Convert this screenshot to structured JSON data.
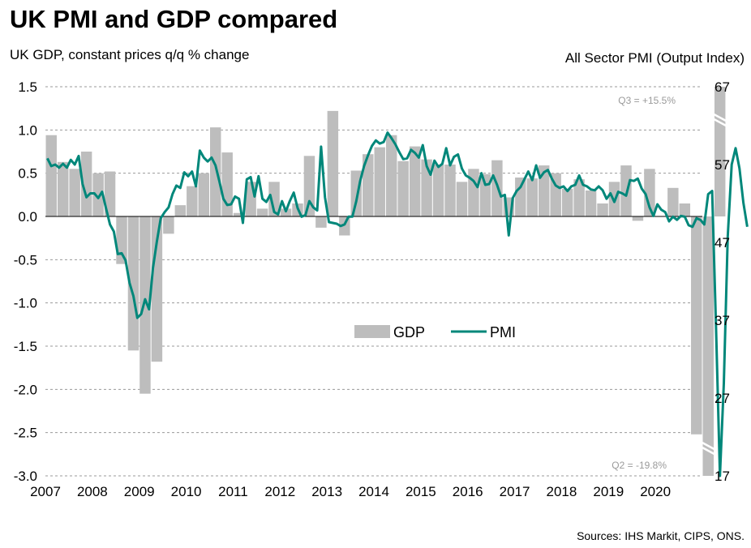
{
  "title": "UK PMI and GDP compared",
  "source": "Sources: IHS Markit, CIPS, ONS.",
  "chart_data": {
    "type": "bar+line",
    "ylabel_left": "UK GDP, constant prices q/q % change",
    "ylabel_right": "All Sector PMI (Output Index)",
    "left_axis": {
      "min": -3.0,
      "max": 1.5,
      "ticks": [
        "1.5",
        "1.0",
        "0.5",
        "0.0",
        "-0.5",
        "-1.0",
        "-1.5",
        "-2.0",
        "-2.5",
        "-3.0"
      ]
    },
    "right_axis": {
      "min": 17,
      "max": 67,
      "ticks": [
        "67",
        "57",
        "47",
        "37",
        "27",
        "17"
      ]
    },
    "x_axis": {
      "start": 2007,
      "end": 2021,
      "labels": [
        "2007",
        "2008",
        "2009",
        "2010",
        "2011",
        "2012",
        "2013",
        "2014",
        "2015",
        "2016",
        "2017",
        "2018",
        "2019",
        "2020"
      ]
    },
    "legend": {
      "placement": "center",
      "items": [
        "GDP",
        "PMI"
      ]
    },
    "colors": {
      "gdp": "#bdbdbd",
      "pmi": "#00877a",
      "grid": "#9a9a9a"
    },
    "annotations": [
      {
        "text": "Q3 = +15.5%"
      },
      {
        "text": "Q2 = -19.8%"
      }
    ],
    "gdp": {
      "name": "GDP",
      "start": "2007 Q1",
      "values": [
        0.94,
        0.63,
        0.55,
        0.75,
        0.5,
        0.52,
        -0.55,
        -1.55,
        -2.05,
        -1.68,
        -0.2,
        0.13,
        0.35,
        0.5,
        1.03,
        0.74,
        0.04,
        0.4,
        0.09,
        0.4,
        0.09,
        0.15,
        0.7,
        -0.13,
        1.22,
        -0.22,
        0.53,
        0.72,
        0.8,
        0.94,
        0.64,
        0.81,
        0.66,
        0.6,
        0.6,
        0.4,
        0.55,
        0.49,
        0.65,
        0.22,
        0.45,
        0.44,
        0.59,
        0.5,
        0.32,
        0.43,
        0.3,
        0.15,
        0.4,
        0.59,
        -0.05,
        0.55,
        0.0,
        0.33,
        0.15,
        -2.52,
        -3.0,
        1.5
      ]
    },
    "pmi": {
      "name": "PMI",
      "start": "2007-01",
      "values": [
        57.8,
        56.8,
        57.0,
        56.6,
        57.1,
        56.6,
        57.6,
        57.0,
        58.1,
        54.5,
        52.8,
        53.3,
        53.3,
        52.7,
        53.5,
        51.4,
        49.3,
        48.4,
        45.5,
        45.6,
        44.7,
        41.8,
        40.1,
        37.3,
        37.8,
        39.7,
        38.4,
        43.7,
        47.1,
        50.1,
        50.9,
        51.5,
        53.2,
        54.3,
        54.0,
        56.0,
        55.5,
        56.1,
        54.2,
        58.8,
        57.9,
        57.4,
        57.9,
        56.9,
        54.8,
        52.6,
        51.8,
        51.9,
        52.9,
        52.6,
        49.5,
        55.1,
        55.4,
        52.9,
        55.5,
        52.6,
        52.2,
        53.1,
        50.9,
        50.6,
        52.3,
        51.0,
        52.3,
        53.4,
        51.4,
        50.3,
        50.5,
        52.3,
        51.5,
        51.1,
        59.3,
        52.8,
        49.6,
        49.5,
        49.4,
        49.1,
        49.3,
        50.3,
        50.3,
        52.3,
        54.9,
        56.8,
        58.2,
        59.4,
        60.1,
        59.7,
        59.9,
        61.1,
        60.4,
        59.6,
        58.6,
        57.7,
        57.8,
        58.9,
        58.5,
        57.9,
        59.5,
        56.8,
        55.7,
        57.5,
        56.7,
        57.1,
        59.1,
        56.9,
        58.0,
        58.3,
        56.5,
        55.6,
        55.3,
        54.9,
        54.1,
        55.9,
        54.4,
        54.5,
        55.6,
        54.4,
        52.9,
        53.1,
        47.9,
        52.7,
        53.6,
        54.1,
        55.1,
        56.1,
        55.0,
        56.9,
        55.3,
        56.0,
        56.3,
        55.2,
        54.3,
        54.0,
        54.2,
        53.6,
        54.2,
        54.4,
        55.6,
        54.4,
        54.2,
        53.8,
        53.7,
        54.2,
        53.7,
        52.6,
        53.3,
        52.2,
        53.5,
        53.3,
        53.0,
        55.0,
        54.9,
        55.2,
        53.9,
        53.2,
        51.5,
        50.4,
        51.9,
        51.2,
        50.9,
        49.7,
        50.3,
        49.9,
        50.4,
        50.3,
        49.2,
        49.0,
        50.1,
        49.9,
        49.3,
        53.2,
        53.6,
        36.0,
        13.8,
        28.9,
        47.7,
        57.0,
        59.1,
        56.5,
        52.1,
        49.0
      ]
    }
  }
}
